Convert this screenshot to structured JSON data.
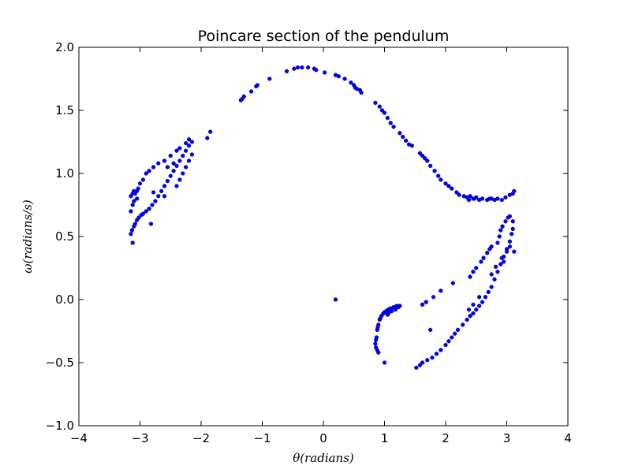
{
  "chart_data": {
    "type": "scatter",
    "title": "Poincare section of the pendulum",
    "xlabel": "θ(radians)",
    "ylabel": "ω(radians/s)",
    "xlim": [
      -4,
      4
    ],
    "ylim": [
      -1.0,
      2.0
    ],
    "x_ticks": [
      -4,
      -3,
      -2,
      -1,
      0,
      1,
      2,
      3,
      4
    ],
    "x_tick_labels": [
      "−4",
      "−3",
      "−2",
      "−1",
      "0",
      "1",
      "2",
      "3",
      "4"
    ],
    "y_ticks": [
      -1.0,
      -0.5,
      0.0,
      0.5,
      1.0,
      1.5,
      2.0
    ],
    "y_tick_labels": [
      "−1.0",
      "−0.5",
      "0.0",
      "0.5",
      "1.0",
      "1.5",
      "2.0"
    ],
    "grid": false,
    "marker_color": "#0000ff",
    "points": [
      [
        -3.12,
        0.45
      ],
      [
        -3.15,
        0.52
      ],
      [
        -3.13,
        0.55
      ],
      [
        -3.1,
        0.58
      ],
      [
        -3.08,
        0.6
      ],
      [
        -3.05,
        0.63
      ],
      [
        -3.02,
        0.65
      ],
      [
        -2.98,
        0.67
      ],
      [
        -2.95,
        0.68
      ],
      [
        -2.9,
        0.7
      ],
      [
        -2.85,
        0.72
      ],
      [
        -2.8,
        0.75
      ],
      [
        -2.75,
        0.78
      ],
      [
        -2.7,
        0.82
      ],
      [
        -2.65,
        0.86
      ],
      [
        -2.6,
        0.9
      ],
      [
        -2.55,
        0.94
      ],
      [
        -2.5,
        0.98
      ],
      [
        -2.45,
        1.02
      ],
      [
        -2.4,
        1.06
      ],
      [
        -2.35,
        1.1
      ],
      [
        -2.3,
        1.14
      ],
      [
        -2.25,
        1.18
      ],
      [
        -2.2,
        1.22
      ],
      [
        -2.15,
        1.25
      ],
      [
        -3.15,
        0.82
      ],
      [
        -3.12,
        0.84
      ],
      [
        -3.1,
        0.86
      ],
      [
        -3.08,
        0.84
      ],
      [
        -3.05,
        0.86
      ],
      [
        -3.03,
        0.88
      ],
      [
        -3.0,
        0.92
      ],
      [
        -2.95,
        0.95
      ],
      [
        -2.9,
        1.0
      ],
      [
        -2.85,
        1.02
      ],
      [
        -2.78,
        1.05
      ],
      [
        -2.7,
        1.08
      ],
      [
        -2.6,
        1.1
      ],
      [
        -2.5,
        1.14
      ],
      [
        -2.4,
        1.18
      ],
      [
        -2.35,
        1.2
      ],
      [
        -2.25,
        1.24
      ],
      [
        -2.2,
        1.27
      ],
      [
        -3.15,
        0.7
      ],
      [
        -3.12,
        0.75
      ],
      [
        -3.1,
        0.78
      ],
      [
        -3.05,
        0.8
      ],
      [
        -2.82,
        0.6
      ],
      [
        -2.6,
        0.82
      ],
      [
        -2.78,
        0.85
      ],
      [
        -2.55,
        1.05
      ],
      [
        -2.45,
        1.08
      ],
      [
        -2.4,
        0.9
      ],
      [
        -2.35,
        0.95
      ],
      [
        -2.3,
        1.0
      ],
      [
        -2.25,
        1.05
      ],
      [
        -2.2,
        1.1
      ],
      [
        -2.15,
        1.15
      ],
      [
        -1.9,
        1.28
      ],
      [
        -1.85,
        1.33
      ],
      [
        -1.35,
        1.58
      ],
      [
        -1.33,
        1.59
      ],
      [
        -1.3,
        1.61
      ],
      [
        -1.18,
        1.65
      ],
      [
        -1.1,
        1.69
      ],
      [
        -1.08,
        1.7
      ],
      [
        -0.88,
        1.75
      ],
      [
        -0.6,
        1.81
      ],
      [
        -0.48,
        1.83
      ],
      [
        -0.42,
        1.84
      ],
      [
        -0.35,
        1.84
      ],
      [
        -0.25,
        1.84
      ],
      [
        -0.15,
        1.83
      ],
      [
        -0.12,
        1.82
      ],
      [
        0.02,
        1.8
      ],
      [
        0.2,
        1.78
      ],
      [
        0.25,
        1.77
      ],
      [
        0.35,
        1.75
      ],
      [
        0.45,
        1.72
      ],
      [
        0.5,
        1.7
      ],
      [
        0.52,
        1.68
      ],
      [
        0.55,
        1.67
      ],
      [
        0.6,
        1.66
      ],
      [
        0.62,
        1.64
      ],
      [
        0.85,
        1.56
      ],
      [
        0.92,
        1.53
      ],
      [
        0.96,
        1.5
      ],
      [
        1.0,
        1.48
      ],
      [
        1.05,
        1.44
      ],
      [
        1.1,
        1.4
      ],
      [
        1.15,
        1.37
      ],
      [
        1.25,
        1.32
      ],
      [
        1.3,
        1.29
      ],
      [
        1.35,
        1.26
      ],
      [
        1.4,
        1.23
      ],
      [
        1.45,
        1.22
      ],
      [
        1.58,
        1.16
      ],
      [
        1.62,
        1.14
      ],
      [
        1.66,
        1.12
      ],
      [
        1.7,
        1.1
      ],
      [
        1.75,
        1.06
      ],
      [
        1.82,
        1.02
      ],
      [
        1.88,
        0.98
      ],
      [
        1.92,
        0.95
      ],
      [
        2.0,
        0.92
      ],
      [
        2.05,
        0.9
      ],
      [
        2.1,
        0.88
      ],
      [
        2.18,
        0.85
      ],
      [
        2.22,
        0.83
      ],
      [
        2.3,
        0.82
      ],
      [
        2.35,
        0.81
      ],
      [
        2.4,
        0.82
      ],
      [
        2.45,
        0.8
      ],
      [
        2.5,
        0.81
      ],
      [
        2.55,
        0.79
      ],
      [
        2.6,
        0.8
      ],
      [
        2.68,
        0.79
      ],
      [
        2.75,
        0.8
      ],
      [
        2.8,
        0.79
      ],
      [
        2.85,
        0.8
      ],
      [
        2.92,
        0.79
      ],
      [
        2.98,
        0.81
      ],
      [
        3.05,
        0.83
      ],
      [
        3.1,
        0.84
      ],
      [
        3.12,
        0.86
      ],
      [
        2.38,
        0.79
      ],
      [
        2.47,
        0.8
      ],
      [
        2.72,
        0.8
      ],
      [
        0.92,
        -0.16
      ],
      [
        0.93,
        -0.15
      ],
      [
        0.95,
        -0.13
      ],
      [
        0.98,
        -0.11
      ],
      [
        1.0,
        -0.1
      ],
      [
        1.03,
        -0.09
      ],
      [
        1.06,
        -0.08
      ],
      [
        1.1,
        -0.07
      ],
      [
        1.15,
        -0.06
      ],
      [
        1.2,
        -0.05
      ],
      [
        1.25,
        -0.05
      ],
      [
        0.9,
        -0.2
      ],
      [
        0.89,
        -0.22
      ],
      [
        0.88,
        -0.24
      ],
      [
        0.87,
        -0.3
      ],
      [
        0.86,
        -0.32
      ],
      [
        0.85,
        -0.35
      ],
      [
        0.86,
        -0.38
      ],
      [
        0.88,
        -0.4
      ],
      [
        0.9,
        -0.42
      ],
      [
        1.0,
        -0.5
      ],
      [
        1.05,
        -0.12
      ],
      [
        1.08,
        -0.1
      ],
      [
        1.12,
        -0.09
      ],
      [
        1.18,
        -0.08
      ],
      [
        1.23,
        -0.06
      ],
      [
        0.2,
        0.0
      ],
      [
        1.52,
        -0.54
      ],
      [
        1.58,
        -0.52
      ],
      [
        1.62,
        -0.5
      ],
      [
        1.7,
        -0.48
      ],
      [
        1.78,
        -0.46
      ],
      [
        1.85,
        -0.43
      ],
      [
        1.92,
        -0.4
      ],
      [
        2.0,
        -0.36
      ],
      [
        2.05,
        -0.33
      ],
      [
        2.1,
        -0.3
      ],
      [
        2.15,
        -0.27
      ],
      [
        2.2,
        -0.24
      ],
      [
        2.28,
        -0.2
      ],
      [
        2.35,
        -0.16
      ],
      [
        2.4,
        -0.13
      ],
      [
        2.45,
        -0.11
      ],
      [
        2.5,
        -0.08
      ],
      [
        2.55,
        -0.05
      ],
      [
        2.6,
        -0.02
      ],
      [
        2.65,
        0.02
      ],
      [
        2.7,
        0.06
      ],
      [
        2.75,
        0.1
      ],
      [
        2.8,
        0.16
      ],
      [
        2.85,
        0.22
      ],
      [
        2.9,
        0.28
      ],
      [
        2.95,
        0.34
      ],
      [
        3.0,
        0.4
      ],
      [
        3.05,
        0.46
      ],
      [
        3.08,
        0.52
      ],
      [
        3.1,
        0.56
      ],
      [
        1.75,
        -0.24
      ],
      [
        1.62,
        -0.04
      ],
      [
        1.68,
        -0.02
      ],
      [
        1.8,
        0.02
      ],
      [
        1.92,
        0.07
      ],
      [
        2.12,
        0.13
      ],
      [
        2.4,
        0.18
      ],
      [
        2.45,
        0.22
      ],
      [
        2.5,
        0.25
      ],
      [
        2.58,
        0.3
      ],
      [
        2.62,
        0.33
      ],
      [
        2.68,
        0.37
      ],
      [
        2.72,
        0.4
      ],
      [
        2.75,
        0.42
      ],
      [
        2.85,
        0.45
      ],
      [
        2.88,
        0.5
      ],
      [
        2.9,
        0.55
      ],
      [
        2.93,
        0.58
      ],
      [
        2.98,
        0.62
      ],
      [
        3.02,
        0.65
      ],
      [
        3.05,
        0.66
      ],
      [
        3.1,
        0.62
      ],
      [
        3.12,
        0.38
      ],
      [
        2.95,
        0.3
      ],
      [
        2.92,
        0.33
      ],
      [
        3.0,
        0.38
      ],
      [
        3.05,
        0.42
      ],
      [
        2.75,
        0.2
      ],
      [
        2.82,
        0.26
      ],
      [
        2.55,
        0.02
      ],
      [
        2.45,
        -0.04
      ],
      [
        2.38,
        -0.08
      ]
    ]
  }
}
